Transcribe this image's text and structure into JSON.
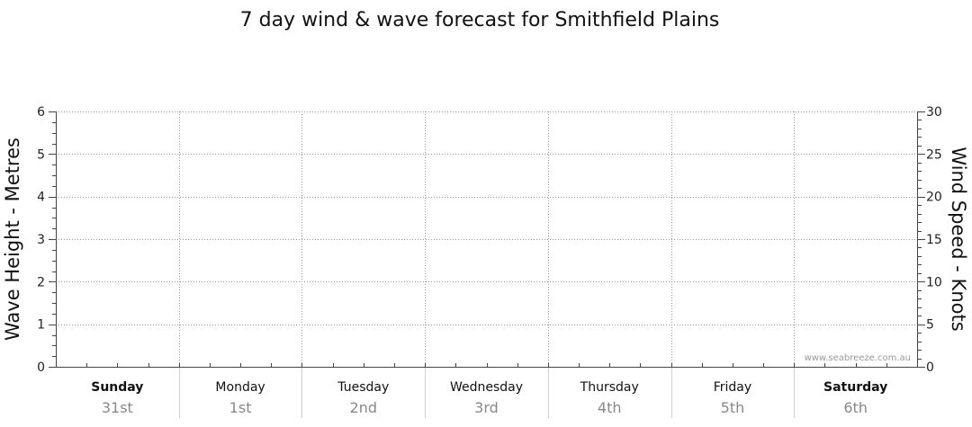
{
  "chart_data": {
    "type": "line",
    "title": "7 day wind & wave forecast for Smithfield Plains",
    "y_left": {
      "label": "Wave Height - Metres",
      "range": [
        0,
        6
      ],
      "ticks": [
        "0",
        "1",
        "2",
        "3",
        "4",
        "5",
        "6"
      ]
    },
    "y_right": {
      "label": "Wind Speed - Knots",
      "range": [
        0,
        30
      ],
      "ticks": [
        "0",
        "5",
        "10",
        "15",
        "20",
        "25",
        "30"
      ]
    },
    "days": [
      {
        "name": "Sunday",
        "date": "31st",
        "bold": true
      },
      {
        "name": "Monday",
        "date": "1st",
        "bold": false
      },
      {
        "name": "Tuesday",
        "date": "2nd",
        "bold": false
      },
      {
        "name": "Wednesday",
        "date": "3rd",
        "bold": false
      },
      {
        "name": "Thursday",
        "date": "4th",
        "bold": false
      },
      {
        "name": "Friday",
        "date": "5th",
        "bold": false
      },
      {
        "name": "Saturday",
        "date": "6th",
        "bold": true
      }
    ],
    "series": [],
    "grid": true
  },
  "watermark": "www.seabreeze.com.au"
}
